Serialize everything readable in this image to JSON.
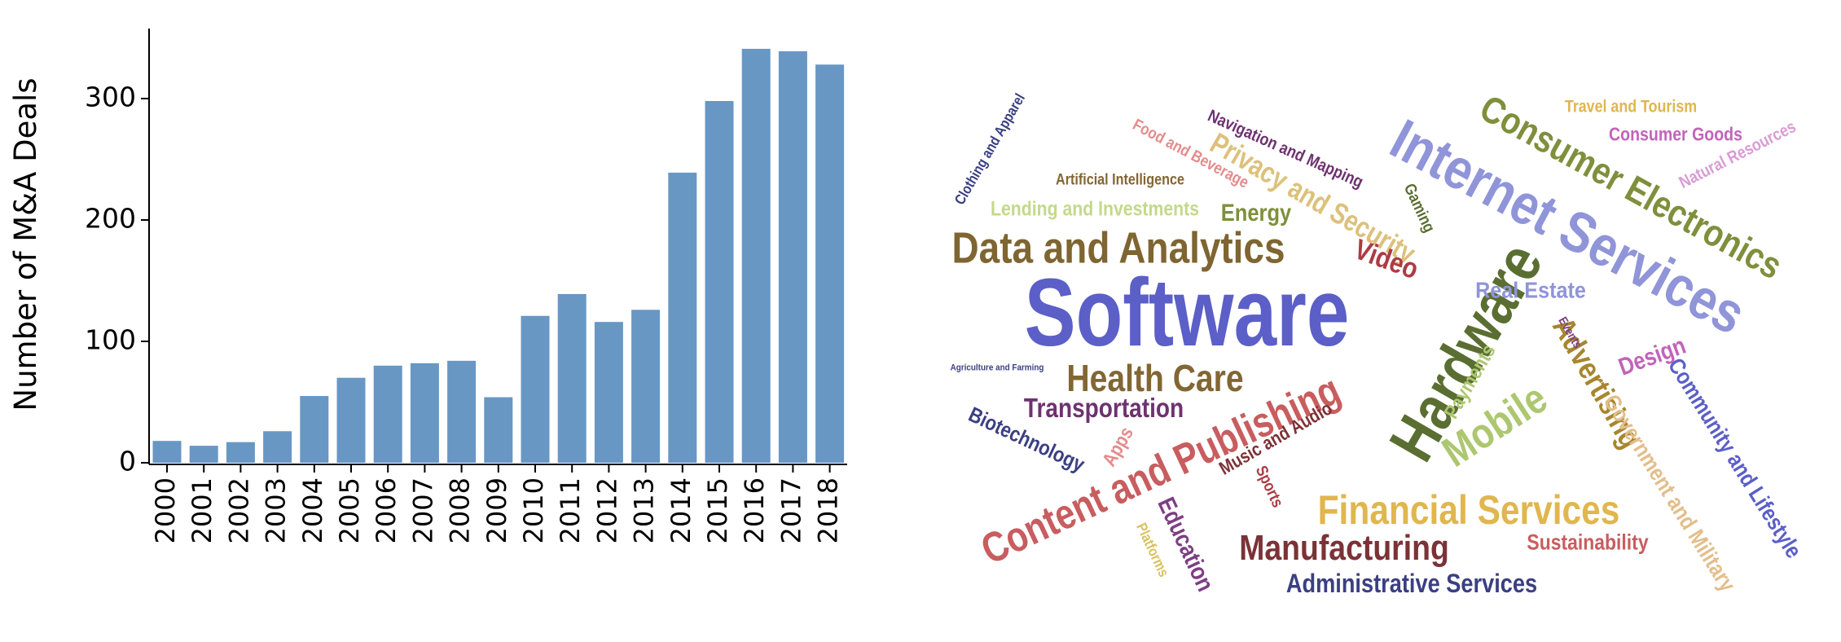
{
  "chart_data": [
    {
      "type": "bar",
      "title": "",
      "xlabel": "",
      "ylabel": "Number of M&A Deals",
      "categories": [
        "2000",
        "2001",
        "2002",
        "2003",
        "2004",
        "2005",
        "2006",
        "2007",
        "2008",
        "2009",
        "2010",
        "2011",
        "2012",
        "2013",
        "2014",
        "2015",
        "2016",
        "2017",
        "2018"
      ],
      "values": [
        18,
        14,
        17,
        26,
        55,
        70,
        80,
        82,
        84,
        54,
        121,
        139,
        116,
        126,
        239,
        298,
        341,
        339,
        328
      ],
      "ylim": [
        0,
        350
      ],
      "yticks": [
        0,
        100,
        200,
        300
      ],
      "bar_color": "#6897c4",
      "grid": false
    },
    {
      "type": "wordcloud",
      "words": [
        {
          "text": "Software",
          "color": "#5b5fc7"
        },
        {
          "text": "Internet Services",
          "color": "#9094d9"
        },
        {
          "text": "Hardware",
          "color": "#5a6e31"
        },
        {
          "text": "Consumer Electronics",
          "color": "#7f8f3c"
        },
        {
          "text": "Data and Analytics",
          "color": "#7e6531"
        },
        {
          "text": "Content and Publishing",
          "color": "#c85d5f"
        },
        {
          "text": "Financial Services",
          "color": "#e0b64e"
        },
        {
          "text": "Health Care",
          "color": "#826633"
        },
        {
          "text": "Manufacturing",
          "color": "#7b3236"
        },
        {
          "text": "Mobile",
          "color": "#adc771"
        },
        {
          "text": "Advertising",
          "color": "#a6862f"
        },
        {
          "text": "Privacy and Security",
          "color": "#dcc17b"
        },
        {
          "text": "Transportation",
          "color": "#6e3270"
        },
        {
          "text": "Video",
          "color": "#ad3b44"
        },
        {
          "text": "Administrative Services",
          "color": "#3b3f82"
        },
        {
          "text": "Community and Lifestyle",
          "color": "#5b5fc7"
        },
        {
          "text": "Government and Military",
          "color": "#e3be8a"
        },
        {
          "text": "Design",
          "color": "#c263bb"
        },
        {
          "text": "Biotechnology",
          "color": "#3b3f82"
        },
        {
          "text": "Energy",
          "color": "#7f8f3c"
        },
        {
          "text": "Lending and Investments",
          "color": "#c3d98b"
        },
        {
          "text": "Real Estate",
          "color": "#9094d9"
        },
        {
          "text": "Sustainability",
          "color": "#c85d5f"
        },
        {
          "text": "Education",
          "color": "#7c3f82"
        },
        {
          "text": "Payments",
          "color": "#adc771"
        },
        {
          "text": "Music and Audio",
          "color": "#7b3236"
        },
        {
          "text": "Navigation and Mapping",
          "color": "#6e3270"
        },
        {
          "text": "Food and Beverage",
          "color": "#e48c8c"
        },
        {
          "text": "Clothing and Apparel",
          "color": "#3b3f82"
        },
        {
          "text": "Artificial Intelligence",
          "color": "#826633"
        },
        {
          "text": "Gaming",
          "color": "#5a6e31"
        },
        {
          "text": "Travel and Tourism",
          "color": "#e0b64e"
        },
        {
          "text": "Consumer Goods",
          "color": "#c263bb"
        },
        {
          "text": "Natural Resources",
          "color": "#d99cd4"
        },
        {
          "text": "Apps",
          "color": "#e48c8c"
        },
        {
          "text": "Sports",
          "color": "#ad3b44"
        },
        {
          "text": "Platforms",
          "color": "#d9c15e"
        },
        {
          "text": "Events",
          "color": "#7c3f82"
        },
        {
          "text": "Agriculture and Farming",
          "color": "#3b3f82"
        }
      ]
    }
  ]
}
